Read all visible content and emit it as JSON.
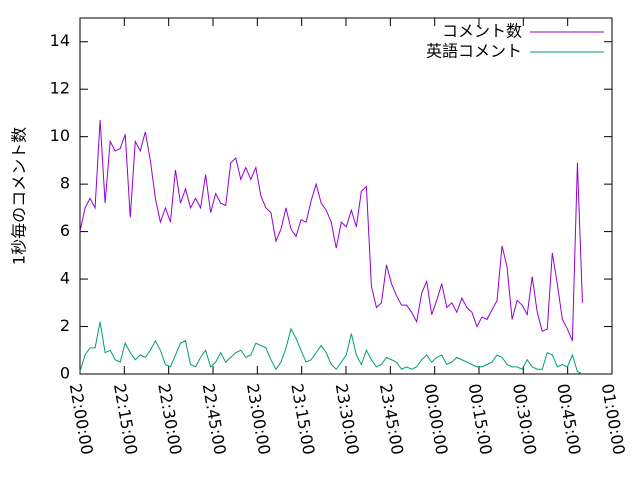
{
  "chart_data": {
    "type": "line",
    "ylabel": "1秒毎のコメント数",
    "x": [
      0,
      1.7,
      3.4,
      5.1,
      6.8,
      8.5,
      10.2,
      11.9,
      13.6,
      15.3,
      17,
      18.7,
      20.4,
      22.1,
      23.8,
      25.5,
      27.2,
      28.9,
      30.6,
      32.3,
      34,
      35.7,
      37.4,
      39.1,
      40.8,
      42.5,
      44.2,
      45.9,
      47.6,
      49.3,
      51,
      52.7,
      54.4,
      56.1,
      57.8,
      59.5,
      61.2,
      62.9,
      64.6,
      66.3,
      68,
      69.7,
      71.4,
      73.1,
      74.8,
      76.5,
      78.2,
      79.9,
      81.6,
      83.3,
      85,
      86.7,
      88.4,
      90.1,
      91.8,
      93.5,
      95.2,
      96.9,
      98.6,
      100.3,
      102,
      103.7,
      105.4,
      107.1,
      108.8,
      110.5,
      112.2,
      113.9,
      115.6,
      117.3,
      119,
      120.7,
      122.4,
      124.1,
      125.8,
      127.5,
      129.2,
      130.9,
      132.6,
      134.3,
      136,
      137.7,
      139.4,
      141.1,
      142.8,
      144.5,
      146.2,
      147.9,
      149.6,
      151.3,
      153,
      154.7,
      156.4,
      158.1,
      159.8,
      161.5,
      163.2,
      164.9,
      166.6,
      168.3,
      170
    ],
    "series": [
      {
        "name": "コメント数",
        "color": "#9400d3",
        "values": [
          6.0,
          7.0,
          7.4,
          7.0,
          10.7,
          7.2,
          9.8,
          9.4,
          9.5,
          10.1,
          6.6,
          9.8,
          9.4,
          10.2,
          9.0,
          7.4,
          6.4,
          7.0,
          6.4,
          8.6,
          7.2,
          7.8,
          7.0,
          7.4,
          7.0,
          8.4,
          6.8,
          7.6,
          7.2,
          7.1,
          8.9,
          9.1,
          8.2,
          8.7,
          8.2,
          8.7,
          7.5,
          7.0,
          6.8,
          5.6,
          6.1,
          7.0,
          6.1,
          5.8,
          6.5,
          6.4,
          7.3,
          8.0,
          7.2,
          6.9,
          6.4,
          5.3,
          6.4,
          6.2,
          6.9,
          6.2,
          7.7,
          7.9,
          3.7,
          2.8,
          3.0,
          4.6,
          3.8,
          3.3,
          2.9,
          2.9,
          2.6,
          2.2,
          3.4,
          3.9,
          2.5,
          3.1,
          3.8,
          2.8,
          3.0,
          2.6,
          3.2,
          2.8,
          2.6,
          2.0,
          2.4,
          2.3,
          2.7,
          3.1,
          5.4,
          4.5,
          2.3,
          3.1,
          2.9,
          2.5,
          4.1,
          2.6,
          1.8,
          1.9,
          5.1,
          3.8,
          2.3,
          1.9,
          1.4,
          8.9,
          3.0
        ]
      },
      {
        "name": "英語コメント",
        "color": "#009e73",
        "values": [
          0.1,
          0.8,
          1.1,
          1.1,
          2.2,
          0.9,
          1.0,
          0.6,
          0.5,
          1.3,
          0.9,
          0.6,
          0.8,
          0.7,
          1.0,
          1.4,
          1.0,
          0.4,
          0.3,
          0.8,
          1.3,
          1.4,
          0.4,
          0.3,
          0.7,
          1.0,
          0.3,
          0.5,
          0.9,
          0.5,
          0.7,
          0.9,
          1.0,
          0.7,
          0.8,
          1.3,
          1.2,
          1.1,
          0.6,
          0.2,
          0.5,
          1.1,
          1.9,
          1.5,
          1.0,
          0.5,
          0.6,
          0.9,
          1.2,
          0.9,
          0.4,
          0.2,
          0.5,
          0.8,
          1.7,
          0.8,
          0.4,
          1.0,
          0.6,
          0.3,
          0.4,
          0.7,
          0.6,
          0.5,
          0.2,
          0.3,
          0.2,
          0.3,
          0.6,
          0.8,
          0.5,
          0.7,
          0.8,
          0.4,
          0.5,
          0.7,
          0.6,
          0.5,
          0.4,
          0.3,
          0.3,
          0.4,
          0.5,
          0.8,
          0.7,
          0.4,
          0.3,
          0.3,
          0.2,
          0.6,
          0.3,
          0.2,
          0.2,
          0.9,
          0.8,
          0.3,
          0.4,
          0.3,
          0.8,
          0.1,
          0.0
        ]
      }
    ],
    "xlim": [
      0,
      180
    ],
    "xticks": [
      {
        "value": 0,
        "label": "22:00:00"
      },
      {
        "value": 15,
        "label": "22:15:00"
      },
      {
        "value": 30,
        "label": "22:30:00"
      },
      {
        "value": 45,
        "label": "22:45:00"
      },
      {
        "value": 60,
        "label": "23:00:00"
      },
      {
        "value": 75,
        "label": "23:15:00"
      },
      {
        "value": 90,
        "label": "23:30:00"
      },
      {
        "value": 105,
        "label": "23:45:00"
      },
      {
        "value": 120,
        "label": "00:00:00"
      },
      {
        "value": 135,
        "label": "00:15:00"
      },
      {
        "value": 150,
        "label": "00:30:00"
      },
      {
        "value": 165,
        "label": "00:45:00"
      },
      {
        "value": 180,
        "label": "01:00:00"
      }
    ],
    "ylim": [
      0,
      15
    ],
    "yticks": [
      0,
      2,
      4,
      6,
      8,
      10,
      12,
      14
    ],
    "legend": "top right"
  }
}
